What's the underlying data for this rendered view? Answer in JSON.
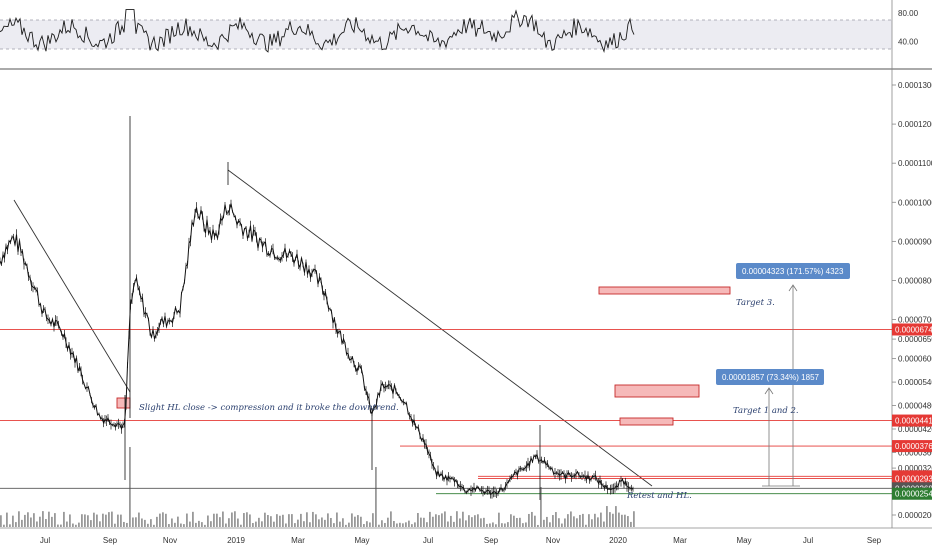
{
  "chart_data": {
    "type": "candlestick",
    "main_panel": {
      "y_axis_labels": [
        "0.00013000",
        "0.00012000",
        "0.00011000",
        "0.00010000",
        "0.00009000",
        "0.00008000",
        "0.00007000",
        "0.00006500",
        "0.00006000",
        "0.00005400",
        "0.00004800",
        "0.00004200",
        "0.00003600",
        "0.00003200",
        "0.00002000"
      ],
      "x_axis_labels": [
        "Jul",
        "Sep",
        "Nov",
        "2019",
        "Mar",
        "May",
        "Jul",
        "Sep",
        "Nov",
        "2020",
        "Mar",
        "May",
        "Jul",
        "Sep"
      ],
      "price_path": [
        [
          0,
          8.5e-05
        ],
        [
          5,
          8.8e-05
        ],
        [
          14,
          9.1e-05
        ],
        [
          22,
          8.7e-05
        ],
        [
          32,
          8e-05
        ],
        [
          45,
          7.1e-05
        ],
        [
          62,
          6.7e-05
        ],
        [
          75,
          6e-05
        ],
        [
          88,
          5.2e-05
        ],
        [
          100,
          4.5e-05
        ],
        [
          112,
          4.4e-05
        ],
        [
          125,
          4.25e-05
        ],
        [
          130,
          7.2e-05
        ],
        [
          135,
          8e-05
        ],
        [
          140,
          7.6e-05
        ],
        [
          148,
          7e-05
        ],
        [
          152,
          6.55e-05
        ],
        [
          160,
          6.9e-05
        ],
        [
          170,
          7e-05
        ],
        [
          180,
          7.3e-05
        ],
        [
          188,
          8.6e-05
        ],
        [
          195,
          9.9e-05
        ],
        [
          205,
          9.4e-05
        ],
        [
          215,
          9.1e-05
        ],
        [
          228,
          9.95e-05
        ],
        [
          238,
          9.5e-05
        ],
        [
          250,
          9.2e-05
        ],
        [
          265,
          8.9e-05
        ],
        [
          280,
          8.7e-05
        ],
        [
          295,
          8.6e-05
        ],
        [
          310,
          8.3e-05
        ],
        [
          325,
          7.7e-05
        ],
        [
          338,
          6.7e-05
        ],
        [
          350,
          6.1e-05
        ],
        [
          362,
          5.6e-05
        ],
        [
          372,
          4.55e-05
        ],
        [
          382,
          5.3e-05
        ],
        [
          395,
          5.2e-05
        ],
        [
          405,
          4.9e-05
        ],
        [
          415,
          4.3e-05
        ],
        [
          425,
          3.85e-05
        ],
        [
          435,
          3.1e-05
        ],
        [
          445,
          2.95e-05
        ],
        [
          455,
          2.9e-05
        ],
        [
          465,
          2.62e-05
        ],
        [
          475,
          2.68e-05
        ],
        [
          485,
          2.6e-05
        ],
        [
          495,
          2.57e-05
        ],
        [
          505,
          2.7e-05
        ],
        [
          515,
          3.05e-05
        ],
        [
          525,
          3.2e-05
        ],
        [
          535,
          3.5e-05
        ],
        [
          545,
          3.35e-05
        ],
        [
          555,
          3.1e-05
        ],
        [
          565,
          3e-05
        ],
        [
          575,
          3.05e-05
        ],
        [
          585,
          2.98e-05
        ],
        [
          595,
          2.95e-05
        ],
        [
          605,
          2.72e-05
        ],
        [
          615,
          2.65e-05
        ],
        [
          622,
          2.9e-05
        ],
        [
          628,
          2.75e-05
        ],
        [
          634,
          2.72e-05
        ]
      ],
      "levels": [
        {
          "price": "0.00006746",
          "color": "#e53935"
        },
        {
          "price": "0.00004416",
          "color": "#e53935"
        },
        {
          "price": "0.00003763",
          "color": "#e53935"
        },
        {
          "price": "0.00002989",
          "color": "#e53935"
        },
        {
          "price": "0.00002931",
          "color": "#e53935"
        },
        {
          "price": "0.00002683",
          "color": "#555555"
        },
        {
          "price": "0.00002544",
          "color": "#2e7d32"
        }
      ],
      "measurements": [
        {
          "label": "0.00004323 (171.57%) 4323"
        },
        {
          "label": "0.00001857 (73.34%) 1857"
        }
      ],
      "annotations": [
        {
          "text": "Slight HL close -> compression and it broke the downtrend."
        },
        {
          "text": "Target 3."
        },
        {
          "text": "Target 1 and 2."
        },
        {
          "text": "Retest and HL."
        }
      ]
    },
    "oscillator_panel": {
      "y_axis_labels": [
        "80.00",
        "40.00"
      ],
      "band_range": [
        30,
        70
      ]
    }
  }
}
